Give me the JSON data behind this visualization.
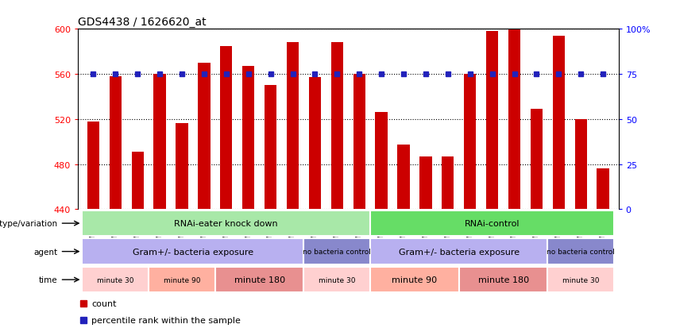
{
  "title": "GDS4438 / 1626620_at",
  "samples": [
    "GSM783343",
    "GSM783344",
    "GSM783345",
    "GSM783349",
    "GSM783350",
    "GSM783351",
    "GSM783355",
    "GSM783356",
    "GSM783357",
    "GSM783337",
    "GSM783338",
    "GSM783339",
    "GSM783340",
    "GSM783341",
    "GSM783342",
    "GSM783346",
    "GSM783347",
    "GSM783348",
    "GSM783352",
    "GSM783353",
    "GSM783354",
    "GSM783334",
    "GSM783335",
    "GSM783336"
  ],
  "counts": [
    518,
    558,
    491,
    560,
    516,
    570,
    585,
    567,
    550,
    588,
    557,
    588,
    560,
    526,
    497,
    487,
    487,
    560,
    598,
    601,
    529,
    594,
    520,
    476
  ],
  "percentile_value": 75,
  "bar_color": "#cc0000",
  "dot_color": "#2222bb",
  "y_min": 440,
  "y_max": 600,
  "y_ticks_left": [
    440,
    480,
    520,
    560,
    600
  ],
  "y_ticks_right": [
    0,
    25,
    50,
    75,
    100
  ],
  "genotype_groups": [
    {
      "label": "RNAi-eater knock down",
      "start": 0,
      "end": 12,
      "color": "#a8e8a8"
    },
    {
      "label": "RNAi-control",
      "start": 13,
      "end": 23,
      "color": "#66dd66"
    }
  ],
  "agent_groups": [
    {
      "label": "Gram+/- bacteria exposure",
      "start": 0,
      "end": 9,
      "color": "#b8b0f0"
    },
    {
      "label": "no bacteria control",
      "start": 10,
      "end": 12,
      "color": "#8888cc"
    },
    {
      "label": "Gram+/- bacteria exposure",
      "start": 13,
      "end": 20,
      "color": "#b8b0f0"
    },
    {
      "label": "no bacteria control",
      "start": 21,
      "end": 23,
      "color": "#8888cc"
    }
  ],
  "time_groups": [
    {
      "label": "minute 30",
      "start": 0,
      "end": 2,
      "color": "#ffd0d0"
    },
    {
      "label": "minute 90",
      "start": 3,
      "end": 5,
      "color": "#ffb0a0"
    },
    {
      "label": "minute 180",
      "start": 6,
      "end": 9,
      "color": "#e89090"
    },
    {
      "label": "minute 30",
      "start": 10,
      "end": 12,
      "color": "#ffd0d0"
    },
    {
      "label": "minute 90",
      "start": 13,
      "end": 16,
      "color": "#ffb0a0"
    },
    {
      "label": "minute 180",
      "start": 17,
      "end": 20,
      "color": "#e89090"
    },
    {
      "label": "minute 30",
      "start": 21,
      "end": 23,
      "color": "#ffd0d0"
    }
  ],
  "row_labels": [
    "genotype/variation",
    "agent",
    "time"
  ],
  "legend_items": [
    {
      "color": "#cc0000",
      "label": "count"
    },
    {
      "color": "#2222bb",
      "label": "percentile rank within the sample"
    }
  ]
}
